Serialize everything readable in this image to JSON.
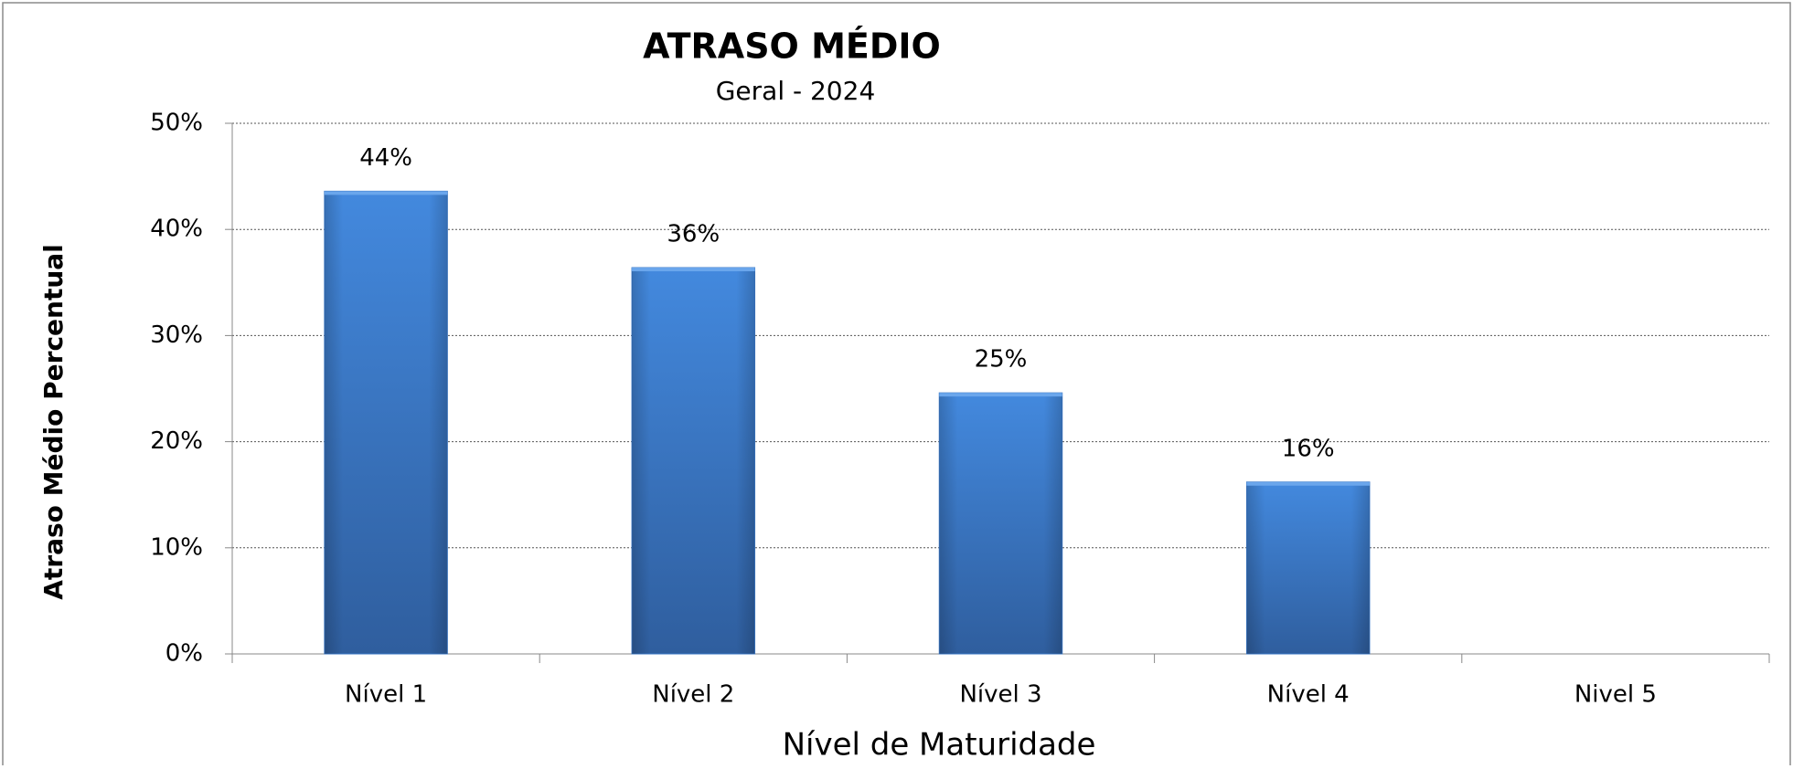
{
  "chart_data": {
    "type": "bar",
    "title": "ATRASO  MÉDIO",
    "subtitle": "Geral - 2024",
    "x_label": "Nível de Maturidade",
    "y_label": "Atraso Médio Percentual",
    "categories": [
      "Nível 1",
      "Nível 2",
      "Nível 3",
      "Nível 4",
      "Nivel 5"
    ],
    "values": [
      43.6,
      36.4,
      24.6,
      16.2,
      null
    ],
    "value_labels": [
      "44%",
      "36%",
      "25%",
      "16%",
      null
    ],
    "color": "#3b78c6",
    "ylim": [
      0,
      50
    ],
    "yticks": [
      {
        "value": 0,
        "label": "0%"
      },
      {
        "value": 10,
        "label": "10%"
      },
      {
        "value": 20,
        "label": "20%"
      },
      {
        "value": 30,
        "label": "30%"
      },
      {
        "value": 40,
        "label": "40%"
      },
      {
        "value": 50,
        "label": "50%"
      }
    ],
    "grid": true
  }
}
